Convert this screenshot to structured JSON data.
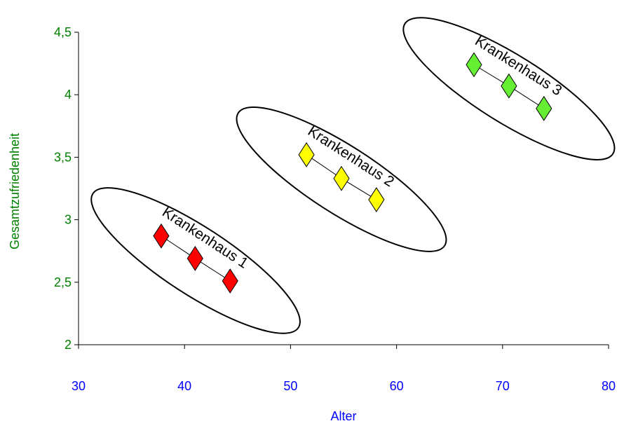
{
  "chart_data": {
    "type": "scatter",
    "title": "",
    "xlabel": "Alter",
    "ylabel": "Gesamtzufriedenheit",
    "xlim": [
      30,
      80
    ],
    "ylim": [
      2,
      4.5
    ],
    "x_ticks": [
      "30",
      "40",
      "50",
      "60",
      "70",
      "80"
    ],
    "y_ticks": [
      "2",
      "2,5",
      "3",
      "3,5",
      "4",
      "4,5"
    ],
    "grid": false,
    "groups": [
      {
        "name": "Krankenhaus 1",
        "color": "#ff0000",
        "points": [
          {
            "x": 37.8,
            "y": 2.87
          },
          {
            "x": 41.0,
            "y": 2.69
          },
          {
            "x": 44.3,
            "y": 2.51
          }
        ]
      },
      {
        "name": "Krankenhaus 2",
        "color": "#ffff00",
        "points": [
          {
            "x": 51.5,
            "y": 3.52
          },
          {
            "x": 54.8,
            "y": 3.33
          },
          {
            "x": 58.1,
            "y": 3.16
          }
        ]
      },
      {
        "name": "Krankenhaus 3",
        "color": "#66ee33",
        "points": [
          {
            "x": 67.3,
            "y": 4.24
          },
          {
            "x": 70.6,
            "y": 4.07
          },
          {
            "x": 73.9,
            "y": 3.89
          }
        ]
      }
    ],
    "colors": {
      "x_axis_text": "#0000ff",
      "y_axis_text": "#008000",
      "axis_line": "#000000"
    }
  }
}
